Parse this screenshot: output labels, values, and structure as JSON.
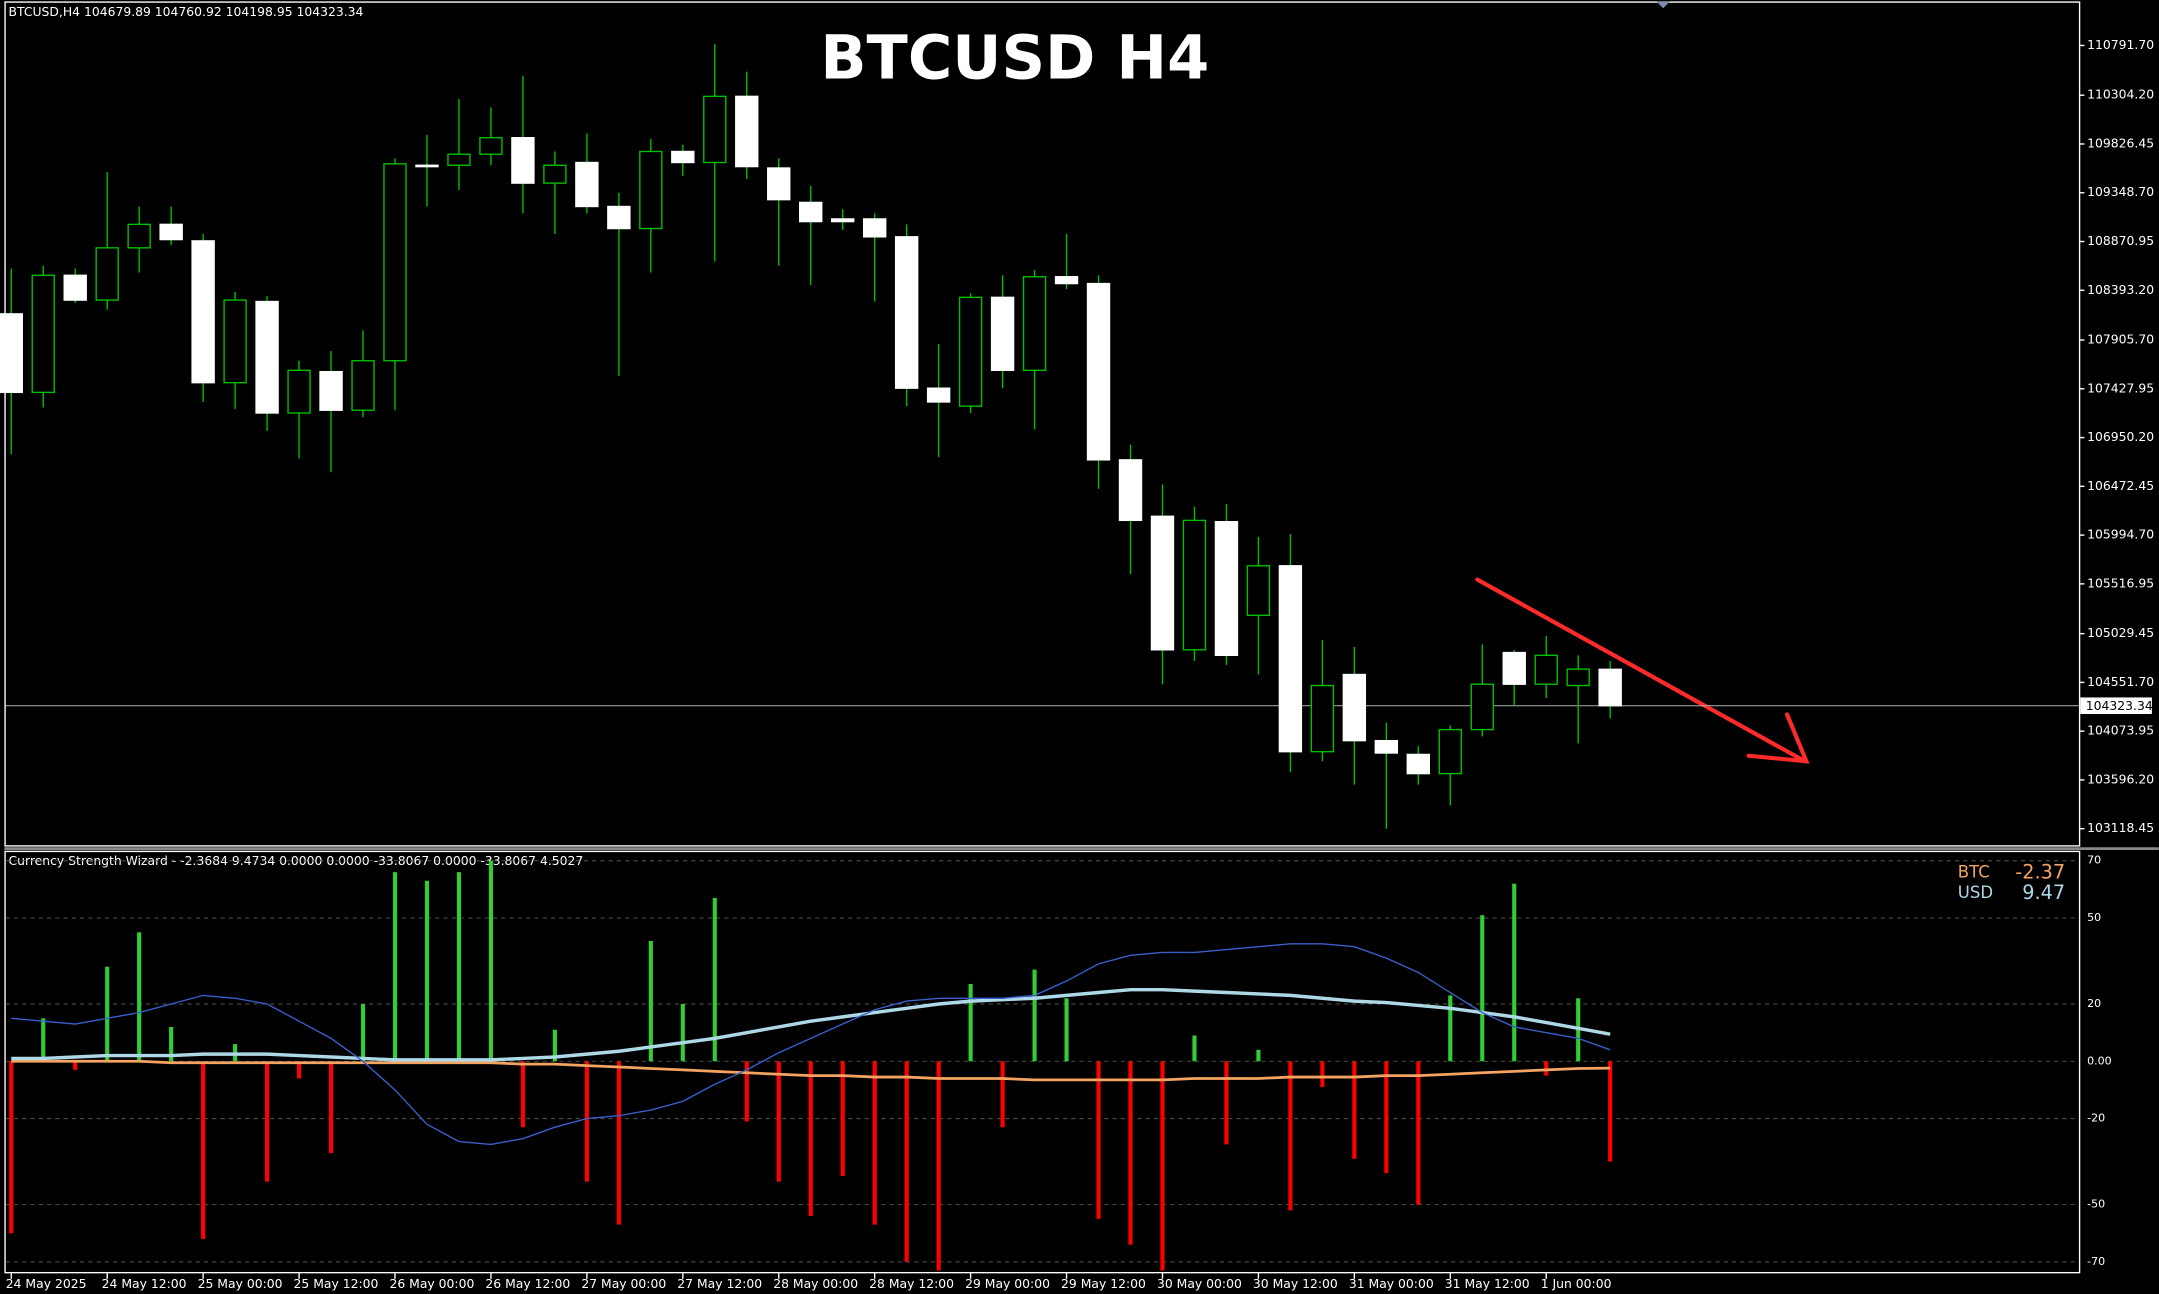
{
  "chart_data": [
    {
      "type": "candlestick",
      "title": "BTCUSD H4",
      "info": "BTCUSD,H4  104679.89 104760.92 104198.95 104323.34",
      "categories": [
        "24 May 2025",
        null,
        null,
        "24 May 12:00",
        null,
        null,
        "25 May 00:00",
        null,
        null,
        "25 May 12:00",
        null,
        null,
        "26 May 00:00",
        null,
        null,
        "26 May 12:00",
        null,
        null,
        "27 May 00:00",
        null,
        null,
        "27 May 12:00",
        null,
        null,
        "28 May 00:00",
        null,
        null,
        "28 May 12:00",
        null,
        null,
        "29 May 00:00",
        null,
        null,
        "29 May 12:00",
        null,
        null,
        "30 May 00:00",
        null,
        null,
        "30 May 12:00",
        null,
        null,
        "31 May 00:00",
        null,
        null,
        "31 May 12:00",
        null,
        null,
        "1 Jun 00:00",
        null,
        null
      ],
      "open": [
        108162,
        107393,
        108540,
        108297,
        108809,
        109039,
        108877,
        107488,
        108283,
        107191,
        107596,
        107218,
        107703,
        109618,
        109618,
        109726,
        109888,
        109443,
        109645,
        109214,
        108998,
        109753,
        109645,
        110293,
        109591,
        109254,
        109092,
        109092,
        108917,
        107434,
        107258,
        108324,
        107609,
        108526,
        108459,
        106732,
        106179,
        104871,
        106126,
        105209,
        105694,
        103873,
        104629,
        103981,
        103846,
        103658,
        104089,
        104844,
        104534,
        104521,
        104679.89
      ],
      "high": [
        108607,
        108634,
        108607,
        109551,
        109214,
        109214,
        108944,
        108378,
        108337,
        107703,
        107798,
        108000,
        109686,
        109915,
        110266,
        110185,
        110495,
        109753,
        109929,
        109349,
        109875,
        109821,
        110805,
        110535,
        109686,
        109416,
        109187,
        109146,
        109039,
        107865,
        108364,
        108540,
        108593,
        108944,
        108540,
        106881,
        106490,
        106274,
        106301,
        105977,
        106004,
        104966,
        104898,
        104157,
        103927,
        104130,
        104925,
        104871,
        105006,
        104817,
        104760.92
      ],
      "low": [
        106786,
        107245,
        108270,
        108202,
        108567,
        108836,
        107299,
        107231,
        107016,
        106746,
        106611,
        107150,
        107218,
        109214,
        109376,
        109618,
        109146,
        108944,
        109146,
        107555,
        108567,
        109511,
        108674,
        109484,
        108634,
        108445,
        108985,
        108283,
        107258,
        106759,
        107191,
        107434,
        107029,
        108405,
        106449,
        105613,
        104534,
        104763,
        104723,
        104629,
        103671,
        103779,
        103550,
        103118,
        103550,
        103347,
        104022,
        104318,
        104399,
        103954,
        104198.95
      ],
      "close": [
        107393,
        108540,
        108297,
        108809,
        109039,
        108890,
        107488,
        108297,
        107191,
        107609,
        107218,
        107703,
        109632,
        109605,
        109726,
        109888,
        109443,
        109618,
        109214,
        108998,
        109753,
        109645,
        110293,
        109605,
        109281,
        109066,
        109066,
        108917,
        107434,
        107299,
        108324,
        107609,
        108526,
        108459,
        106732,
        106139,
        104871,
        106139,
        104817,
        105694,
        103873,
        104521,
        103981,
        103860,
        103658,
        104089,
        104534,
        104534,
        104817,
        104682,
        104323.34
      ],
      "up_color": "#00c000",
      "down_color": "#ffffff",
      "ylim": [
        102943,
        111210
      ],
      "yticks": [
        {
          "value": 110791.7,
          "label": "110791.70"
        },
        {
          "value": 110304.2,
          "label": "110304.20"
        },
        109826.45,
        {
          "value": 109348.7,
          "label": "109348.70"
        },
        108870.95,
        {
          "value": 108393.2,
          "label": "108393.20"
        },
        {
          "value": 107905.7,
          "label": "107905.70"
        },
        107427.95,
        {
          "value": 106950.2,
          "label": "106950.20"
        },
        106472.45,
        {
          "value": 105994.7,
          "label": "105994.70"
        },
        105516.95,
        105029.45,
        {
          "value": 104551.7,
          "label": "104551.70"
        },
        104073.95,
        {
          "value": 103596.2,
          "label": "103596.20"
        },
        103118.45
      ],
      "price_line": 104323.34
    },
    {
      "type": "oscillator",
      "title": "Currency Strength Wizard -  -2.3684 9.4734 0.0000 0.0000 -33.8067 0.0000 -33.8067 4.5027",
      "values": [
        -60,
        15,
        -3,
        33,
        45,
        12,
        -62,
        6,
        -42,
        -6,
        -32,
        20,
        66,
        63,
        66,
        70,
        -23,
        11,
        -42,
        -57,
        42,
        20,
        57,
        -21,
        -42,
        -54,
        -40,
        -57,
        -70,
        -73,
        27,
        -23,
        32,
        22,
        -55,
        -64,
        -73,
        9,
        -29,
        4,
        -52,
        -9,
        -34,
        -39,
        -50,
        23,
        51,
        62,
        -5,
        22,
        -35
      ],
      "up_color": "#32cd32",
      "down_color": "#ff0000",
      "series": [
        {
          "name": "BTC",
          "color": "#f4a460",
          "legend_value": "-2.37",
          "values": [
            0,
            0,
            0,
            0,
            0,
            -0.5,
            -0.5,
            -0.5,
            -0.5,
            -0.5,
            -0.5,
            -0.5,
            -0.5,
            -0.5,
            -0.5,
            -0.5,
            -1,
            -1,
            -1.5,
            -2,
            -2.5,
            -3,
            -3.5,
            -4,
            -4.5,
            -5,
            -5,
            -5.5,
            -5.5,
            -6,
            -6,
            -6,
            -6.5,
            -6.5,
            -6.5,
            -6.5,
            -6.5,
            -6,
            -6,
            -6,
            -5.5,
            -5.5,
            -5.5,
            -5,
            -5,
            -4.5,
            -4,
            -3.5,
            -3,
            -2.5,
            -2.37
          ]
        },
        {
          "name": "USD",
          "color": "#add8e6",
          "legend_value": "9.47",
          "values": [
            1,
            1,
            1.5,
            2,
            2,
            2,
            2.5,
            2.5,
            2.5,
            2,
            1.5,
            1,
            0.5,
            0.5,
            0.5,
            0.5,
            1,
            1.5,
            2.5,
            3.5,
            5,
            6.5,
            8,
            10,
            12,
            14,
            15.5,
            17,
            18.5,
            20,
            21,
            21.5,
            22,
            23,
            24,
            25,
            25,
            24.5,
            24,
            23.5,
            23,
            22,
            21,
            20.5,
            19.5,
            18.5,
            17,
            15.5,
            13.5,
            11.5,
            9.47
          ]
        },
        {
          "color": "#3a5fcd",
          "values": [
            15,
            14,
            13,
            15,
            17,
            20,
            23,
            22,
            20,
            14,
            8,
            0,
            -10,
            -22,
            -28,
            -29,
            -27,
            -23,
            -20,
            -19,
            -17,
            -14,
            -8,
            -3,
            3,
            8,
            13,
            18,
            21,
            22,
            22,
            22,
            23,
            28,
            34,
            37,
            38,
            38,
            39,
            40,
            41,
            41,
            40,
            36,
            31,
            24,
            17,
            12,
            10,
            8,
            4
          ]
        }
      ],
      "ylim": [
        -74,
        73
      ],
      "yticks": [
        70,
        50,
        20,
        {
          "value": 0,
          "label": "0.00"
        },
        -20,
        -50,
        -70
      ],
      "grid": true
    }
  ]
}
